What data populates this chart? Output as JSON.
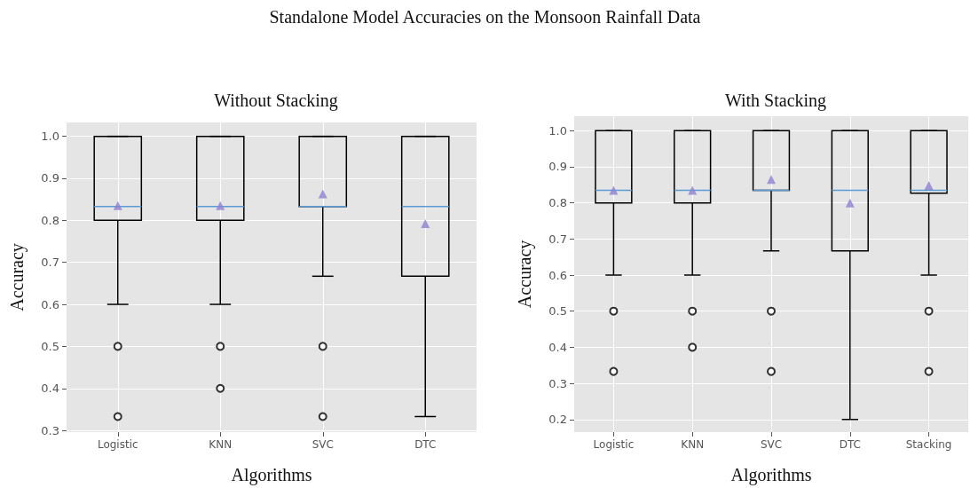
{
  "chart_data": [
    {
      "type": "box",
      "title": "Without Stacking",
      "xlabel": "Algorithms",
      "ylabel": "Accuracy",
      "annotations": [
        "Standalone Model Accuracies on the Monsoon Rainfall Data"
      ],
      "categories": [
        "Logistic",
        "KNN",
        "SVC",
        "DTC"
      ],
      "series": [
        {
          "color": "#000000",
          "boxes": [
            {
              "low": 0.6,
              "q1": 0.8,
              "median": 0.833,
              "q3": 1.0,
              "high": 1.0,
              "mean": 0.835,
              "outliers": [
                0.5,
                0.333
              ]
            },
            {
              "low": 0.6,
              "q1": 0.8,
              "median": 0.833,
              "q3": 1.0,
              "high": 1.0,
              "mean": 0.835,
              "outliers": [
                0.5,
                0.4
              ]
            },
            {
              "low": 0.667,
              "q1": 0.833,
              "median": 0.833,
              "q3": 1.0,
              "high": 1.0,
              "mean": 0.863,
              "outliers": [
                0.5,
                0.333
              ]
            },
            {
              "low": 0.333,
              "q1": 0.667,
              "median": 0.833,
              "q3": 1.0,
              "high": 1.0,
              "mean": 0.792
            }
          ]
        }
      ],
      "ylim": [
        0.296,
        1.033
      ],
      "yticks": [
        0.3,
        0.4,
        0.5,
        0.6,
        0.7,
        0.8,
        0.9,
        {
          "value": 1.0,
          "label": "1.0"
        }
      ],
      "grid": true
    },
    {
      "type": "box",
      "title": "With Stacking",
      "xlabel": "Algorithms",
      "ylabel": "Accuracy",
      "categories": [
        "Logistic",
        "KNN",
        "SVC",
        "DTC",
        "Stacking"
      ],
      "series": [
        {
          "color": "#000000",
          "boxes": [
            {
              "low": 0.6,
              "q1": 0.8,
              "median": 0.835,
              "q3": 1.0,
              "high": 1.0,
              "mean": 0.835,
              "outliers": [
                0.5,
                0.333
              ]
            },
            {
              "low": 0.6,
              "q1": 0.8,
              "median": 0.835,
              "q3": 1.0,
              "high": 1.0,
              "mean": 0.835,
              "outliers": [
                0.5,
                0.4
              ]
            },
            {
              "low": 0.667,
              "q1": 0.835,
              "median": 0.835,
              "q3": 1.0,
              "high": 1.0,
              "mean": 0.865,
              "outliers": [
                0.5,
                0.333
              ]
            },
            {
              "low": 0.2,
              "q1": 0.667,
              "median": 0.835,
              "q3": 1.0,
              "high": 1.0,
              "mean": 0.8
            },
            {
              "low": 0.6,
              "q1": 0.827,
              "median": 0.835,
              "q3": 1.0,
              "high": 1.0,
              "mean": 0.848,
              "outliers": [
                0.5,
                0.333
              ]
            }
          ]
        }
      ],
      "ylim": [
        0.165,
        1.04
      ],
      "yticks": [
        0.2,
        0.3,
        0.4,
        0.5,
        0.6,
        0.7,
        0.8,
        0.9,
        {
          "value": 1.0,
          "label": "1.0"
        }
      ],
      "grid": true
    }
  ]
}
